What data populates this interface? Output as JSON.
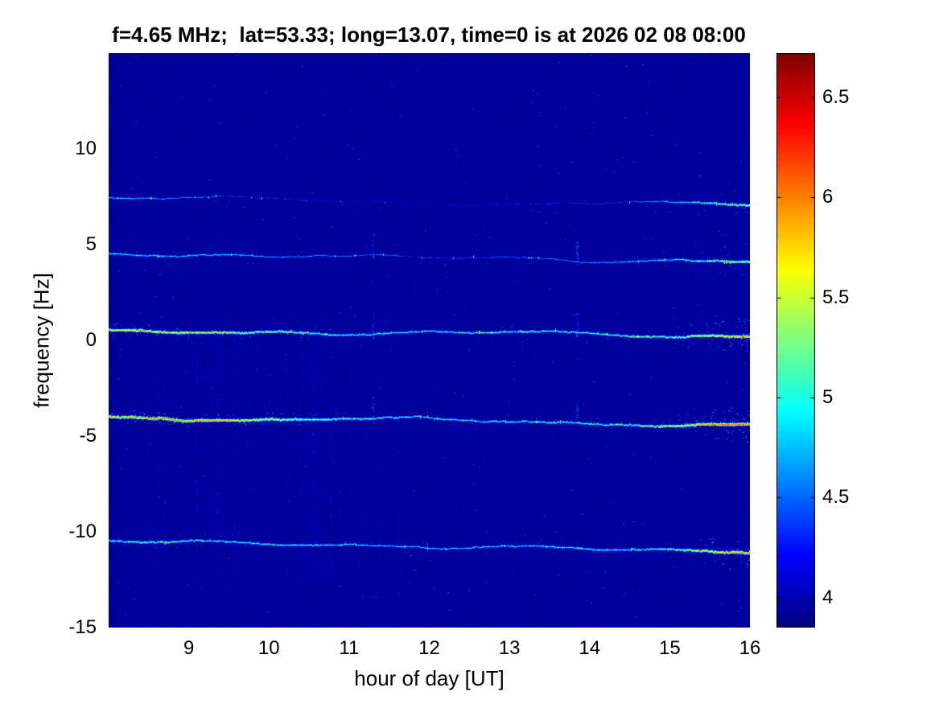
{
  "chart_data": {
    "type": "heatmap",
    "title": "f=4.65 MHz;  lat=53.33; long=13.07, time=0 is at 2026 02 08 08:00",
    "xlabel": "hour of day [UT]",
    "ylabel": "frequency [Hz]",
    "x_range": [
      8,
      16
    ],
    "y_range": [
      -15,
      15
    ],
    "x_ticks": [
      9,
      10,
      11,
      12,
      13,
      14,
      15,
      16
    ],
    "y_ticks": [
      -15,
      -10,
      -5,
      0,
      5,
      10
    ],
    "grid": false,
    "legend": "none",
    "colorbar": {
      "position": "right",
      "min": 3.85,
      "max": 6.72,
      "ticks": [
        4,
        4.5,
        5,
        5.5,
        6,
        6.5
      ],
      "colormap": "jet"
    },
    "background_value": 3.93,
    "sample_hours": [
      8,
      8.5,
      9,
      9.5,
      10,
      10.5,
      11,
      11.5,
      12,
      12.5,
      13,
      13.5,
      14,
      14.5,
      15,
      15.5,
      16
    ],
    "traces": [
      {
        "name": "doppler-line-7.3Hz",
        "y_start": 7.5,
        "y_end": 7.0,
        "intensity": [
          4.8,
          4.7,
          4.55,
          4.4,
          4.3,
          4.25,
          4.2,
          4.15,
          4.1,
          4.2,
          4.2,
          4.3,
          4.3,
          4.4,
          4.7,
          5.2,
          5.45
        ]
      },
      {
        "name": "doppler-line-4.4Hz",
        "y_start": 4.55,
        "y_end": 4.2,
        "intensity": [
          5.0,
          4.9,
          4.85,
          4.8,
          4.7,
          4.6,
          4.5,
          4.45,
          4.35,
          4.4,
          4.45,
          4.5,
          4.6,
          4.75,
          4.9,
          5.3,
          5.5
        ]
      },
      {
        "name": "doppler-line-0.3Hz",
        "y_start": 0.45,
        "y_end": 0.3,
        "intensity": [
          5.6,
          5.7,
          5.5,
          5.45,
          5.35,
          5.2,
          5.05,
          5.0,
          4.95,
          5.0,
          5.1,
          5.05,
          5.1,
          5.2,
          5.3,
          5.7,
          5.9
        ]
      },
      {
        "name": "doppler-line-minus4.1Hz",
        "y_start": -4.0,
        "y_end": -4.4,
        "intensity": [
          5.9,
          6.0,
          5.9,
          5.75,
          5.6,
          5.4,
          5.2,
          5.05,
          4.95,
          4.95,
          5.0,
          5.05,
          5.1,
          5.2,
          5.5,
          6.0,
          6.1
        ]
      },
      {
        "name": "doppler-line-minus10.7Hz",
        "y_start": -10.5,
        "y_end": -11.0,
        "intensity": [
          5.1,
          5.2,
          5.1,
          5.05,
          5.0,
          4.95,
          4.9,
          4.85,
          4.8,
          4.85,
          4.9,
          4.9,
          5.0,
          5.0,
          5.2,
          5.7,
          5.9
        ]
      }
    ],
    "spike_hours": [
      11.3,
      13.85
    ]
  }
}
